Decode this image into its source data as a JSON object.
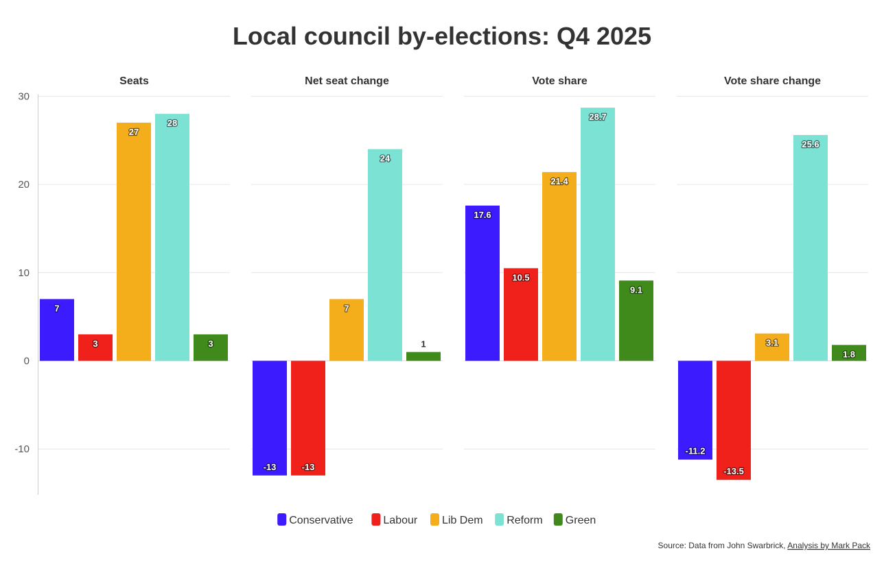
{
  "chart_data": {
    "type": "bar",
    "title": "Local council by-elections: Q4 2025",
    "categories": [
      "Conservative",
      "Labour",
      "Lib Dem",
      "Reform",
      "Green"
    ],
    "colors": {
      "Conservative": "#3d1bff",
      "Labour": "#f0201b",
      "Lib Dem": "#f4ad1b",
      "Reform": "#7ce2d4",
      "Green": "#3f8a1a"
    },
    "ylim": [
      -15,
      30
    ],
    "yticks": [
      30,
      20,
      10,
      0,
      -10
    ],
    "grid": true,
    "legend_position": "bottom",
    "panels": [
      {
        "title": "Seats",
        "values": [
          7,
          3,
          27,
          28,
          3
        ],
        "labels": [
          "7",
          "3",
          "27",
          "28",
          "3"
        ]
      },
      {
        "title": "Net seat change",
        "values": [
          -13,
          -13,
          7,
          24,
          1
        ],
        "labels": [
          "-13",
          "-13",
          "7",
          "24",
          "1"
        ]
      },
      {
        "title": "Vote share",
        "values": [
          17.6,
          10.5,
          21.4,
          28.7,
          9.1
        ],
        "labels": [
          "17.6",
          "10.5",
          "21.4",
          "28.7",
          "9.1"
        ]
      },
      {
        "title": "Vote share change",
        "values": [
          -11.2,
          -13.5,
          3.1,
          25.6,
          1.8
        ],
        "labels": [
          "-11.2",
          "-13.5",
          "3.1",
          "25.6",
          "1.8"
        ]
      }
    ]
  },
  "source": {
    "prefix": "Source: Data from John Swarbrick, ",
    "link_text": "Analysis by Mark Pack"
  }
}
